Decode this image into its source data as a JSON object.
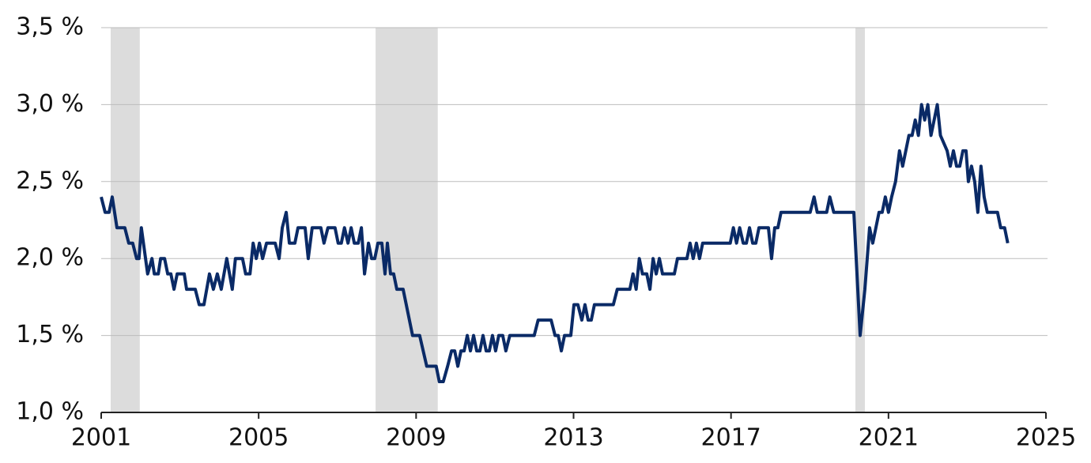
{
  "chart_data": {
    "type": "line",
    "x": [
      2001.0,
      2001.1,
      2001.2,
      2001.28,
      2001.4,
      2001.6,
      2001.7,
      2001.8,
      2001.9,
      2001.96,
      2002.02,
      2002.18,
      2002.29,
      2002.35,
      2002.45,
      2002.51,
      2002.61,
      2002.69,
      2002.77,
      2002.85,
      2002.93,
      2003.11,
      2003.17,
      2003.39,
      2003.49,
      2003.61,
      2003.75,
      2003.85,
      2003.95,
      2004.05,
      2004.19,
      2004.33,
      2004.41,
      2004.59,
      2004.67,
      2004.78,
      2004.86,
      2004.94,
      2005.02,
      2005.1,
      2005.2,
      2005.42,
      2005.52,
      2005.6,
      2005.7,
      2005.78,
      2005.92,
      2006.0,
      2006.18,
      2006.26,
      2006.36,
      2006.58,
      2006.66,
      2006.76,
      2006.94,
      2007.02,
      2007.1,
      2007.18,
      2007.27,
      2007.35,
      2007.43,
      2007.53,
      2007.61,
      2007.69,
      2007.79,
      2007.87,
      2007.95,
      2008.03,
      2008.13,
      2008.21,
      2008.27,
      2008.35,
      2008.43,
      2008.51,
      2008.67,
      2008.75,
      2008.83,
      2008.91,
      2009.09,
      2009.27,
      2009.51,
      2009.59,
      2009.69,
      2009.8,
      2009.9,
      2009.98,
      2010.06,
      2010.14,
      2010.22,
      2010.3,
      2010.38,
      2010.46,
      2010.54,
      2010.62,
      2010.7,
      2010.78,
      2010.86,
      2010.94,
      2011.02,
      2011.1,
      2011.2,
      2011.28,
      2011.38,
      2012.0,
      2012.1,
      2012.43,
      2012.53,
      2012.61,
      2012.69,
      2012.77,
      2012.93,
      2013.01,
      2013.11,
      2013.21,
      2013.29,
      2013.37,
      2013.45,
      2013.53,
      2014.01,
      2014.11,
      2014.43,
      2014.51,
      2014.59,
      2014.67,
      2014.75,
      2014.86,
      2014.94,
      2015.02,
      2015.1,
      2015.18,
      2015.26,
      2015.56,
      2015.64,
      2015.88,
      2015.96,
      2016.04,
      2016.12,
      2016.2,
      2016.28,
      2016.98,
      2017.06,
      2017.14,
      2017.22,
      2017.31,
      2017.39,
      2017.47,
      2017.55,
      2017.63,
      2017.71,
      2017.95,
      2018.03,
      2018.11,
      2018.19,
      2018.27,
      2019.01,
      2019.11,
      2019.19,
      2019.43,
      2019.51,
      2019.61,
      2020.12,
      2020.28,
      2020.4,
      2020.52,
      2020.6,
      2020.76,
      2020.84,
      2020.92,
      2021.0,
      2021.08,
      2021.18,
      2021.28,
      2021.36,
      2021.52,
      2021.6,
      2021.68,
      2021.76,
      2021.84,
      2021.92,
      2022.0,
      2022.08,
      2022.24,
      2022.32,
      2022.49,
      2022.57,
      2022.65,
      2022.73,
      2022.81,
      2022.89,
      2022.97,
      2023.03,
      2023.11,
      2023.19,
      2023.27,
      2023.35,
      2023.43,
      2023.51,
      2023.77,
      2023.85,
      2023.95,
      2024.03
    ],
    "values": [
      2.4,
      2.3,
      2.3,
      2.4,
      2.2,
      2.2,
      2.1,
      2.1,
      2.0,
      2.0,
      2.2,
      1.9,
      2.0,
      1.9,
      1.9,
      2.0,
      2.0,
      1.9,
      1.9,
      1.8,
      1.9,
      1.9,
      1.8,
      1.8,
      1.7,
      1.7,
      1.9,
      1.8,
      1.9,
      1.8,
      2.0,
      1.8,
      2.0,
      2.0,
      1.9,
      1.9,
      2.1,
      2.0,
      2.1,
      2.0,
      2.1,
      2.1,
      2.0,
      2.2,
      2.3,
      2.1,
      2.1,
      2.2,
      2.2,
      2.0,
      2.2,
      2.2,
      2.1,
      2.2,
      2.2,
      2.1,
      2.1,
      2.2,
      2.1,
      2.2,
      2.1,
      2.1,
      2.2,
      1.9,
      2.1,
      2.0,
      2.0,
      2.1,
      2.1,
      1.9,
      2.1,
      1.9,
      1.9,
      1.8,
      1.8,
      1.7,
      1.6,
      1.5,
      1.5,
      1.3,
      1.3,
      1.2,
      1.2,
      1.3,
      1.4,
      1.4,
      1.3,
      1.4,
      1.4,
      1.5,
      1.4,
      1.5,
      1.4,
      1.4,
      1.5,
      1.4,
      1.4,
      1.5,
      1.4,
      1.5,
      1.5,
      1.4,
      1.5,
      1.5,
      1.6,
      1.6,
      1.5,
      1.5,
      1.4,
      1.5,
      1.5,
      1.7,
      1.7,
      1.6,
      1.7,
      1.6,
      1.6,
      1.7,
      1.7,
      1.8,
      1.8,
      1.9,
      1.8,
      2.0,
      1.9,
      1.9,
      1.8,
      2.0,
      1.9,
      2.0,
      1.9,
      1.9,
      2.0,
      2.0,
      2.1,
      2.0,
      2.1,
      2.0,
      2.1,
      2.1,
      2.2,
      2.1,
      2.2,
      2.1,
      2.1,
      2.2,
      2.1,
      2.1,
      2.2,
      2.2,
      2.0,
      2.2,
      2.2,
      2.3,
      2.3,
      2.4,
      2.3,
      2.3,
      2.4,
      2.3,
      2.3,
      1.5,
      1.8,
      2.2,
      2.1,
      2.3,
      2.3,
      2.4,
      2.3,
      2.4,
      2.5,
      2.7,
      2.6,
      2.8,
      2.8,
      2.9,
      2.8,
      3.0,
      2.9,
      3.0,
      2.8,
      3.0,
      2.8,
      2.7,
      2.6,
      2.7,
      2.6,
      2.6,
      2.7,
      2.7,
      2.5,
      2.6,
      2.5,
      2.3,
      2.6,
      2.4,
      2.3,
      2.3,
      2.2,
      2.2,
      2.1
    ],
    "color": "#0a2a66",
    "shaded_periods": [
      [
        2001.24,
        2001.98
      ],
      [
        2007.97,
        2009.55
      ],
      [
        2020.16,
        2020.4
      ]
    ],
    "shade_color": "#dcdcdc",
    "xlim": [
      2001,
      2025
    ],
    "xticks": [
      2001,
      2005,
      2009,
      2013,
      2017,
      2021,
      2025
    ],
    "ylim": [
      1.0,
      3.5
    ],
    "yticks": [
      {
        "value": 1.0,
        "label": "1,0 %"
      },
      {
        "value": 1.5,
        "label": "1,5 %"
      },
      {
        "value": 2.0,
        "label": "2,0 %"
      },
      {
        "value": 2.5,
        "label": "2,5 %"
      },
      {
        "value": 3.0,
        "label": "3,0 %"
      },
      {
        "value": 3.5,
        "label": "3,5 %"
      }
    ],
    "grid": true
  }
}
